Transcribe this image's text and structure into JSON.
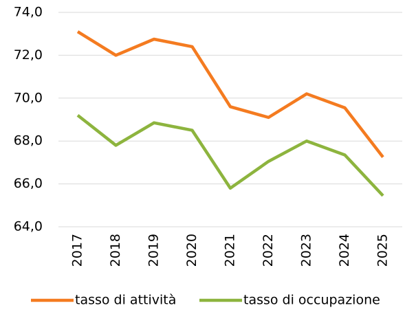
{
  "chart_data": {
    "type": "line",
    "categories": [
      "2017",
      "2018",
      "2019",
      "2020",
      "2021",
      "2022",
      "2023",
      "2024",
      "2025"
    ],
    "series": [
      {
        "name": "tasso di attività",
        "color": "#f47b20",
        "values": [
          73.1,
          72.0,
          72.75,
          72.4,
          69.6,
          69.1,
          70.2,
          69.55,
          67.25
        ]
      },
      {
        "name": "tasso di occupazione",
        "color": "#8db43e",
        "values": [
          69.2,
          67.8,
          68.85,
          68.5,
          65.8,
          67.05,
          68.0,
          67.35,
          65.45
        ]
      }
    ],
    "ylim": [
      64,
      74
    ],
    "yticks": [
      {
        "value": 64,
        "label": "64,0"
      },
      {
        "value": 66,
        "label": "66,0"
      },
      {
        "value": 68,
        "label": "68,0"
      },
      {
        "value": 70,
        "label": "70,0"
      },
      {
        "value": 72,
        "label": "72,0"
      },
      {
        "value": 74,
        "label": "74,0"
      }
    ],
    "grid": true,
    "legend": "bottom"
  }
}
